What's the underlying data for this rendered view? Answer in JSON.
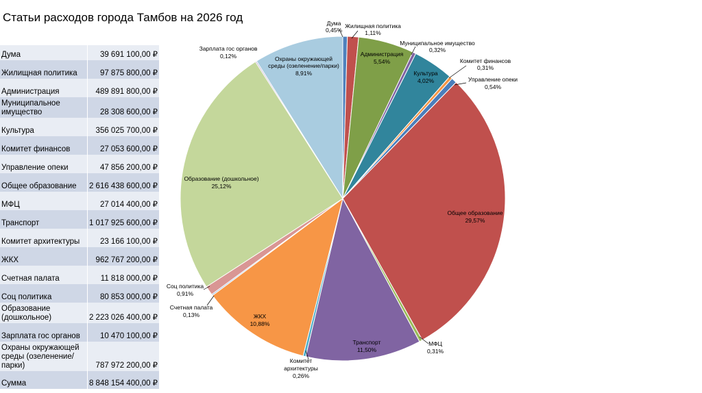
{
  "title": "Статьи расходов города Тамбов на 2026 год",
  "table": {
    "rows": [
      {
        "name": "Дума",
        "amount": "39 691 100,00 ₽"
      },
      {
        "name": "Жилищная политика",
        "amount": "97 875 800,00 ₽"
      },
      {
        "name": "Администрация",
        "amount": "489 891 800,00 ₽"
      },
      {
        "name": "Муниципальное имущество",
        "amount": "28 308 600,00 ₽"
      },
      {
        "name": "Культура",
        "amount": "356 025 700,00 ₽"
      },
      {
        "name": "Комитет финансов",
        "amount": "27 053 600,00 ₽"
      },
      {
        "name": "Управление опеки",
        "amount": "47 856 200,00 ₽"
      },
      {
        "name": "Общее образование",
        "amount": "2 616 438 600,00 ₽"
      },
      {
        "name": "МФЦ",
        "amount": "27 014 400,00 ₽"
      },
      {
        "name": "Транспорт",
        "amount": "1 017 925 600,00 ₽"
      },
      {
        "name": "Комитет архитектуры",
        "amount": "23 166 100,00 ₽"
      },
      {
        "name": "ЖКХ",
        "amount": "962 767 200,00 ₽"
      },
      {
        "name": "Счетная палата",
        "amount": "11 818 000,00 ₽"
      },
      {
        "name": "Соц политика",
        "amount": "80 853 000,00 ₽"
      },
      {
        "name": "Образование (дошкольное)",
        "amount": "2 223 026 400,00 ₽"
      },
      {
        "name": "Зарплата гос органов",
        "amount": "10 470 100,00 ₽"
      },
      {
        "name": "Охраны окружающей среды (озеленение/парки)",
        "amount": "787 972 200,00 ₽"
      }
    ],
    "total": {
      "name": "Сумма",
      "amount": "8 848 154 400,00 ₽"
    }
  },
  "chart_data": {
    "type": "pie",
    "title": "",
    "start_angle_deg": 0,
    "direction": "clockwise",
    "slices": [
      {
        "label": "Дума",
        "value": 0.45,
        "pct_label": "0,45%",
        "color": "#4f81bd"
      },
      {
        "label": "Жилищная политика",
        "value": 1.11,
        "pct_label": "1,11%",
        "color": "#c0504d"
      },
      {
        "label": "Администрация",
        "value": 5.54,
        "pct_label": "5,54%",
        "color": "#7f9f48"
      },
      {
        "label": "Муниципальное имущество",
        "value": 0.32,
        "pct_label": "0,32%",
        "color": "#8064a2"
      },
      {
        "label": "Культура",
        "value": 4.02,
        "pct_label": "4,02%",
        "color": "#31859c"
      },
      {
        "label": "Комитет финансов",
        "value": 0.31,
        "pct_label": "0,31%",
        "color": "#f79646"
      },
      {
        "label": "Управление опеки",
        "value": 0.54,
        "pct_label": "0,54%",
        "color": "#4a7ebb"
      },
      {
        "label": "Общее образование",
        "value": 29.57,
        "pct_label": "29,57%",
        "color": "#c0504d"
      },
      {
        "label": "МФЦ",
        "value": 0.31,
        "pct_label": "0,31%",
        "color": "#9bbb59"
      },
      {
        "label": "Транспорт",
        "value": 11.5,
        "pct_label": "11,50%",
        "color": "#8064a2"
      },
      {
        "label": "Комитет архитектуры",
        "value": 0.26,
        "pct_label": "0,26%",
        "color": "#4bacc6"
      },
      {
        "label": "ЖКХ",
        "value": 10.88,
        "pct_label": "10,88%",
        "color": "#f79646"
      },
      {
        "label": "Счетная палата",
        "value": 0.13,
        "pct_label": "0,13%",
        "color": "#95b3d7"
      },
      {
        "label": "Соц политика",
        "value": 0.91,
        "pct_label": "0,91%",
        "color": "#d99694"
      },
      {
        "label": "Образование (дошкольное)",
        "value": 25.12,
        "pct_label": "25,12%",
        "color": "#c4d79b"
      },
      {
        "label": "Зарплата гос органов",
        "value": 0.12,
        "pct_label": "0,12%",
        "color": "#b3a2c7"
      },
      {
        "label": "Охраны окружающей среды (озеленение/парки)",
        "value": 8.91,
        "pct_label": "8,91%",
        "color": "#a9cce0"
      }
    ]
  }
}
